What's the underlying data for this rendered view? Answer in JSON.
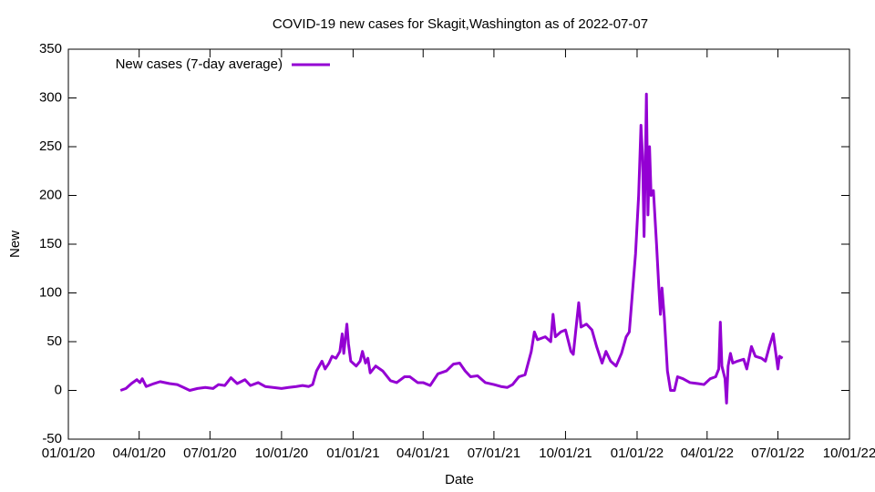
{
  "chart_data": {
    "type": "line",
    "title": "COVID-19 new cases for Skagit,Washington as of 2022-07-07",
    "xlabel": "Date",
    "ylabel": "New",
    "xlim": [
      "2020-01-01",
      "2022-10-01"
    ],
    "xticks": [
      {
        "value": "2020-01-01",
        "label": "01/01/20"
      },
      {
        "value": "2020-04-01",
        "label": "04/01/20"
      },
      {
        "value": "2020-07-01",
        "label": "07/01/20"
      },
      {
        "value": "2020-10-01",
        "label": "10/01/20"
      },
      {
        "value": "2021-01-01",
        "label": "01/01/21"
      },
      {
        "value": "2021-04-01",
        "label": "04/01/21"
      },
      {
        "value": "2021-07-01",
        "label": "07/01/21"
      },
      {
        "value": "2021-10-01",
        "label": "10/01/21"
      },
      {
        "value": "2022-01-01",
        "label": "01/01/22"
      },
      {
        "value": "2022-04-01",
        "label": "04/01/22"
      },
      {
        "value": "2022-07-01",
        "label": "07/01/22"
      },
      {
        "value": "2022-10-01",
        "label": "10/01/22"
      }
    ],
    "ylim": [
      -50,
      350
    ],
    "yticks": [
      -50,
      0,
      50,
      100,
      150,
      200,
      250,
      300,
      350
    ],
    "grid": false,
    "legend": "top-left",
    "series": [
      {
        "name": "New cases (7-day average)",
        "color": "#9400d3",
        "x": [
          "2020-03-08",
          "2020-03-15",
          "2020-03-22",
          "2020-03-29",
          "2020-04-02",
          "2020-04-05",
          "2020-04-10",
          "2020-04-20",
          "2020-04-28",
          "2020-05-10",
          "2020-05-20",
          "2020-05-28",
          "2020-06-05",
          "2020-06-15",
          "2020-06-25",
          "2020-07-05",
          "2020-07-12",
          "2020-07-20",
          "2020-07-28",
          "2020-08-05",
          "2020-08-15",
          "2020-08-22",
          "2020-09-01",
          "2020-09-10",
          "2020-09-20",
          "2020-10-01",
          "2020-10-10",
          "2020-10-20",
          "2020-10-28",
          "2020-11-05",
          "2020-11-10",
          "2020-11-15",
          "2020-11-22",
          "2020-11-26",
          "2020-12-01",
          "2020-12-05",
          "2020-12-10",
          "2020-12-15",
          "2020-12-18",
          "2020-12-20",
          "2020-12-24",
          "2020-12-26",
          "2020-12-29",
          "2021-01-05",
          "2021-01-10",
          "2021-01-13",
          "2021-01-17",
          "2021-01-20",
          "2021-01-23",
          "2021-01-30",
          "2021-02-08",
          "2021-02-18",
          "2021-02-26",
          "2021-03-08",
          "2021-03-15",
          "2021-03-25",
          "2021-04-01",
          "2021-04-10",
          "2021-04-20",
          "2021-05-01",
          "2021-05-10",
          "2021-05-18",
          "2021-05-25",
          "2021-06-01",
          "2021-06-10",
          "2021-06-20",
          "2021-07-01",
          "2021-07-10",
          "2021-07-18",
          "2021-07-25",
          "2021-08-02",
          "2021-08-10",
          "2021-08-18",
          "2021-08-22",
          "2021-08-26",
          "2021-09-05",
          "2021-09-12",
          "2021-09-15",
          "2021-09-18",
          "2021-09-25",
          "2021-10-01",
          "2021-10-08",
          "2021-10-11",
          "2021-10-14",
          "2021-10-18",
          "2021-10-21",
          "2021-10-28",
          "2021-11-04",
          "2021-11-10",
          "2021-11-17",
          "2021-11-22",
          "2021-11-28",
          "2021-12-05",
          "2021-12-12",
          "2021-12-18",
          "2021-12-22",
          "2021-12-26",
          "2021-12-30",
          "2022-01-03",
          "2022-01-06",
          "2022-01-08",
          "2022-01-10",
          "2022-01-12",
          "2022-01-13",
          "2022-01-15",
          "2022-01-17",
          "2022-01-19",
          "2022-01-22",
          "2022-01-26",
          "2022-01-29",
          "2022-01-31",
          "2022-02-02",
          "2022-02-05",
          "2022-02-09",
          "2022-02-13",
          "2022-02-18",
          "2022-02-22",
          "2022-03-01",
          "2022-03-10",
          "2022-03-20",
          "2022-03-28",
          "2022-04-05",
          "2022-04-12",
          "2022-04-16",
          "2022-04-18",
          "2022-04-20",
          "2022-04-24",
          "2022-04-26",
          "2022-04-28",
          "2022-05-01",
          "2022-05-04",
          "2022-05-10",
          "2022-05-18",
          "2022-05-22",
          "2022-05-28",
          "2022-06-02",
          "2022-06-10",
          "2022-06-15",
          "2022-06-20",
          "2022-06-25",
          "2022-06-28",
          "2022-07-01",
          "2022-07-03",
          "2022-07-07"
        ],
        "values": [
          0,
          2,
          7,
          11,
          8,
          12,
          4,
          7,
          9,
          7,
          6,
          3,
          0,
          2,
          3,
          2,
          6,
          5,
          13,
          7,
          11,
          5,
          8,
          4,
          3,
          2,
          3,
          4,
          5,
          4,
          6,
          20,
          30,
          22,
          28,
          35,
          33,
          40,
          58,
          38,
          68,
          48,
          30,
          25,
          30,
          40,
          28,
          33,
          18,
          25,
          20,
          10,
          8,
          14,
          14,
          8,
          8,
          5,
          17,
          20,
          27,
          28,
          20,
          14,
          15,
          8,
          6,
          4,
          3,
          6,
          14,
          16,
          40,
          60,
          52,
          55,
          50,
          78,
          55,
          60,
          62,
          40,
          37,
          60,
          90,
          65,
          68,
          62,
          45,
          28,
          40,
          30,
          25,
          38,
          55,
          60,
          100,
          140,
          200,
          272,
          240,
          158,
          250,
          304,
          180,
          250,
          200,
          205,
          150,
          105,
          78,
          105,
          75,
          20,
          0,
          0,
          14,
          12,
          8,
          7,
          6,
          12,
          14,
          22,
          70,
          25,
          12,
          -13,
          25,
          38,
          28,
          30,
          32,
          22,
          45,
          35,
          33,
          30,
          45,
          58,
          40,
          22,
          35,
          33
        ]
      }
    ]
  }
}
